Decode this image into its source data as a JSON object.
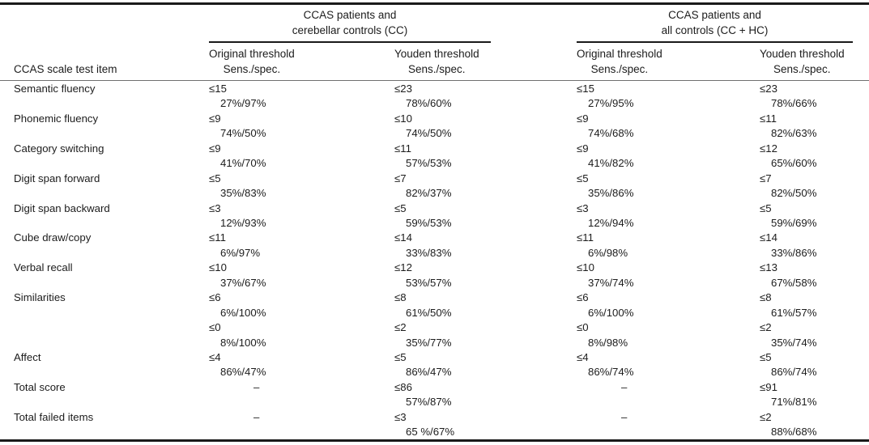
{
  "colors": {
    "text": "#1c1c1c",
    "rule": "#1a1a1a",
    "background": "#ffffff"
  },
  "table": {
    "stub_header": "CCAS scale test item",
    "groups": [
      {
        "title_line1": "CCAS patients and",
        "title_line2": "cerebellar controls (CC)"
      },
      {
        "title_line1": "CCAS patients and",
        "title_line2": "all controls (CC + HC)"
      }
    ],
    "col_headers": [
      {
        "line1": "Original threshold",
        "line2": "Sens./spec."
      },
      {
        "line1": "Youden threshold",
        "line2": "Sens./spec."
      },
      {
        "line1": "Original threshold",
        "line2": "Sens./spec."
      },
      {
        "line1": "Youden threshold",
        "line2": "Sens./spec."
      }
    ],
    "rows": [
      {
        "item": "Semantic fluency",
        "cells": [
          {
            "threshold": "≤15",
            "sens_spec": "27%/97%"
          },
          {
            "threshold": "≤23",
            "sens_spec": "78%/60%"
          },
          {
            "threshold": "≤15",
            "sens_spec": "27%/95%"
          },
          {
            "threshold": "≤23",
            "sens_spec": "78%/66%"
          }
        ]
      },
      {
        "item": "Phonemic fluency",
        "cells": [
          {
            "threshold": "≤9",
            "sens_spec": "74%/50%"
          },
          {
            "threshold": "≤10",
            "sens_spec": "74%/50%"
          },
          {
            "threshold": "≤9",
            "sens_spec": "74%/68%"
          },
          {
            "threshold": "≤11",
            "sens_spec": "82%/63%"
          }
        ]
      },
      {
        "item": "Category switching",
        "cells": [
          {
            "threshold": "≤9",
            "sens_spec": "41%/70%"
          },
          {
            "threshold": "≤11",
            "sens_spec": "57%/53%"
          },
          {
            "threshold": "≤9",
            "sens_spec": "41%/82%"
          },
          {
            "threshold": "≤12",
            "sens_spec": "65%/60%"
          }
        ]
      },
      {
        "item": "Digit span forward",
        "cells": [
          {
            "threshold": "≤5",
            "sens_spec": "35%/83%"
          },
          {
            "threshold": "≤7",
            "sens_spec": "82%/37%"
          },
          {
            "threshold": "≤5",
            "sens_spec": "35%/86%"
          },
          {
            "threshold": "≤7",
            "sens_spec": "82%/50%"
          }
        ]
      },
      {
        "item": "Digit span backward",
        "cells": [
          {
            "threshold": "≤3",
            "sens_spec": "12%/93%"
          },
          {
            "threshold": "≤5",
            "sens_spec": "59%/53%"
          },
          {
            "threshold": "≤3",
            "sens_spec": "12%/94%"
          },
          {
            "threshold": "≤5",
            "sens_spec": "59%/69%"
          }
        ]
      },
      {
        "item": "Cube draw/copy",
        "cells": [
          {
            "threshold": "≤11",
            "sens_spec": "6%/97%"
          },
          {
            "threshold": "≤14",
            "sens_spec": "33%/83%"
          },
          {
            "threshold": "≤11",
            "sens_spec": "6%/98%"
          },
          {
            "threshold": "≤14",
            "sens_spec": "33%/86%"
          }
        ]
      },
      {
        "item": "Verbal recall",
        "cells": [
          {
            "threshold": "≤10",
            "sens_spec": "37%/67%"
          },
          {
            "threshold": "≤12",
            "sens_spec": "53%/57%"
          },
          {
            "threshold": "≤10",
            "sens_spec": "37%/74%"
          },
          {
            "threshold": "≤13",
            "sens_spec": "67%/58%"
          }
        ]
      },
      {
        "item": "Similarities",
        "cells": [
          {
            "threshold": "≤6",
            "sens_spec": "6%/100%"
          },
          {
            "threshold": "≤8",
            "sens_spec": "61%/50%"
          },
          {
            "threshold": "≤6",
            "sens_spec": "6%/100%"
          },
          {
            "threshold": "≤8",
            "sens_spec": "61%/57%"
          }
        ]
      },
      {
        "item": "",
        "cells": [
          {
            "threshold": "≤0",
            "sens_spec": "8%/100%"
          },
          {
            "threshold": "≤2",
            "sens_spec": "35%/77%"
          },
          {
            "threshold": "≤0",
            "sens_spec": "8%/98%"
          },
          {
            "threshold": "≤2",
            "sens_spec": "35%/74%"
          }
        ]
      },
      {
        "item": "Affect",
        "cells": [
          {
            "threshold": "≤4",
            "sens_spec": "86%/47%"
          },
          {
            "threshold": "≤5",
            "sens_spec": "86%/47%"
          },
          {
            "threshold": "≤4",
            "sens_spec": "86%/74%"
          },
          {
            "threshold": "≤5",
            "sens_spec": "86%/74%"
          }
        ]
      },
      {
        "item": "Total score",
        "cells": [
          {
            "threshold": "–",
            "sens_spec": ""
          },
          {
            "threshold": "≤86",
            "sens_spec": "57%/87%"
          },
          {
            "threshold": "–",
            "sens_spec": ""
          },
          {
            "threshold": "≤91",
            "sens_spec": "71%/81%"
          }
        ]
      },
      {
        "item": "Total failed items",
        "cells": [
          {
            "threshold": "–",
            "sens_spec": ""
          },
          {
            "threshold": "≤3",
            "sens_spec": "65 %/67%"
          },
          {
            "threshold": "–",
            "sens_spec": ""
          },
          {
            "threshold": "≤2",
            "sens_spec": "88%/68%"
          }
        ]
      }
    ]
  }
}
